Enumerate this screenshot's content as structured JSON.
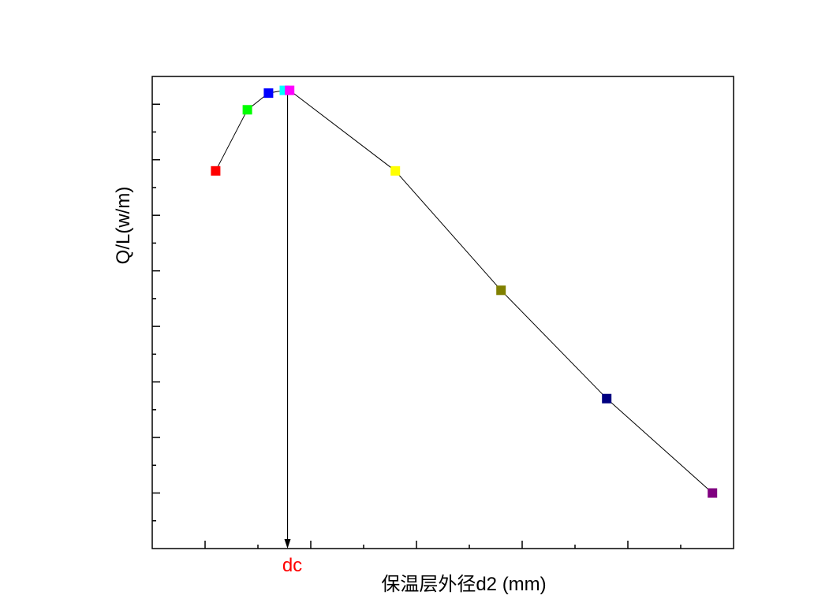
{
  "chart_data": {
    "type": "line",
    "title": "",
    "xlabel": "保温层外径d2 (mm)",
    "ylabel": "Q/L(w/m)",
    "xlim": [
      0,
      11
    ],
    "ylim": [
      0,
      17
    ],
    "grid": false,
    "tick_labels_shown": false,
    "x_major_ticks": [
      1,
      3,
      5,
      7,
      9
    ],
    "x_minor_ticks": [
      2,
      4,
      6,
      8,
      10
    ],
    "y_major_ticks": [
      2,
      4,
      6,
      8,
      10,
      12,
      14,
      16
    ],
    "y_minor_ticks": [
      1,
      3,
      5,
      7,
      9,
      11,
      13,
      15
    ],
    "series": [
      {
        "line_color": "#000000",
        "points": [
          {
            "x": 1.2,
            "y": 13.6,
            "color": "#ff0000"
          },
          {
            "x": 1.8,
            "y": 15.8,
            "color": "#00ff00"
          },
          {
            "x": 2.2,
            "y": 16.4,
            "color": "#0000ff"
          },
          {
            "x": 2.5,
            "y": 16.5,
            "color": "#00ffff"
          },
          {
            "x": 2.6,
            "y": 16.5,
            "color": "#ff00ff"
          },
          {
            "x": 4.6,
            "y": 13.6,
            "color": "#ffff00"
          },
          {
            "x": 6.6,
            "y": 9.3,
            "color": "#808000"
          },
          {
            "x": 8.6,
            "y": 5.4,
            "color": "#000080"
          },
          {
            "x": 10.6,
            "y": 2.0,
            "color": "#800080"
          }
        ]
      }
    ],
    "annotations": [
      {
        "text": "dc",
        "x": 2.56,
        "color": "#ff0000",
        "arrow_from_y": 16.5,
        "arrow_to_y": 0
      }
    ]
  }
}
